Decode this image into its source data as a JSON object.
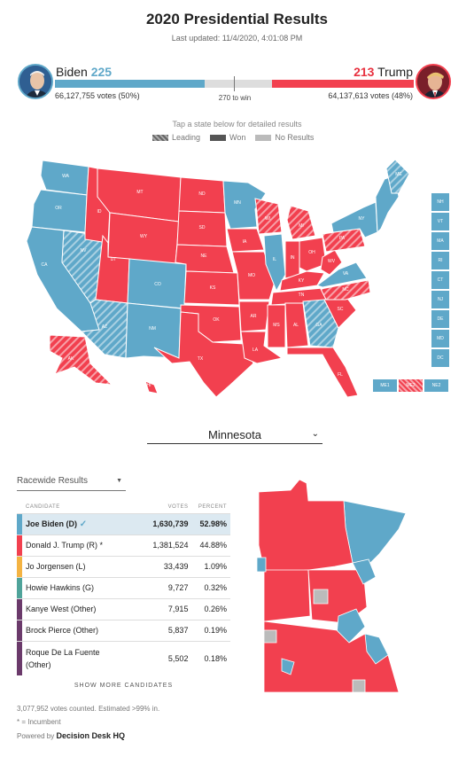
{
  "header": {
    "title": "2020 Presidential Results",
    "updated": "Last updated: 11/4/2020, 4:01:08 PM"
  },
  "biden": {
    "name": "Biden",
    "ev": "225",
    "votes": "66,127,755 votes (50%)",
    "color": "#5fa8c9"
  },
  "trump": {
    "name": "Trump",
    "ev": "213",
    "votes": "64,137,613 votes (48%)",
    "color": "#f2404f"
  },
  "win_label": "270 to win",
  "ev_bar": {
    "total": 538,
    "biden": 225,
    "trump": 213
  },
  "tap_text": "Tap a state below for detailed results",
  "legend": {
    "leading": "Leading",
    "won": "Won",
    "no_results": "No Results"
  },
  "states": {
    "WA": "WA",
    "OR": "OR",
    "CA": "CA",
    "NV": "NV",
    "ID": "ID",
    "MT": "MT",
    "WY": "WY",
    "UT": "UT",
    "AZ": "AZ",
    "CO": "CO",
    "NM": "NM",
    "ND": "ND",
    "SD": "SD",
    "NE": "NE",
    "KS": "KS",
    "OK": "OK",
    "TX": "TX",
    "MN": "MN",
    "IA": "IA",
    "MO": "MO",
    "AR": "AR",
    "LA": "LA",
    "WI": "WI",
    "IL": "IL",
    "MI": "MI",
    "IN": "IN",
    "OH": "OH",
    "KY": "KY",
    "TN": "TN",
    "MS": "MS",
    "AL": "AL",
    "GA": "GA",
    "FL": "FL",
    "SC": "SC",
    "NC": "NC",
    "VA": "VA",
    "WV": "WV",
    "PA": "PA",
    "NY": "NY",
    "ME": "ME",
    "AK": "AK",
    "HI": "HI"
  },
  "small_states": [
    "NH",
    "VT",
    "MA",
    "RI",
    "CT",
    "NJ",
    "DE",
    "MD",
    "DC"
  ],
  "districts": [
    "ME1",
    "ME2",
    "NE2"
  ],
  "state_select": {
    "selected": "Minnesota"
  },
  "race_select": {
    "selected": "Racewide Results"
  },
  "table": {
    "headers": {
      "candidate": "CANDIDATE",
      "votes": "VOTES",
      "percent": "PERCENT"
    },
    "rows": [
      {
        "name": "Joe Biden (D)",
        "votes": "1,630,739",
        "pct": "52.98%",
        "color": "#5fa8c9",
        "winner": true
      },
      {
        "name": "Donald J. Trump (R) *",
        "votes": "1,381,524",
        "pct": "44.88%",
        "color": "#f2404f"
      },
      {
        "name": "Jo Jorgensen (L)",
        "votes": "33,439",
        "pct": "1.09%",
        "color": "#f4b342"
      },
      {
        "name": "Howie Hawkins (G)",
        "votes": "9,727",
        "pct": "0.32%",
        "color": "#4fa39a"
      },
      {
        "name": "Kanye West (Other)",
        "votes": "7,915",
        "pct": "0.26%",
        "color": "#6b3a6b"
      },
      {
        "name": "Brock Pierce (Other)",
        "votes": "5,837",
        "pct": "0.19%",
        "color": "#6b3a6b"
      },
      {
        "name": "Roque De La Fuente (Other)",
        "votes": "5,502",
        "pct": "0.18%",
        "color": "#6b3a6b"
      }
    ]
  },
  "show_more": "SHOW MORE CANDIDATES",
  "counted": "3,077,952 votes counted. Estimated >99% in.",
  "incumbent_note": "* = Incumbent",
  "powered": {
    "label": "Powered by",
    "brand": "Decision Desk HQ"
  },
  "colors": {
    "dem": "#5fa8c9",
    "rep": "#f2404f",
    "no_results": "#bbbbbb"
  }
}
